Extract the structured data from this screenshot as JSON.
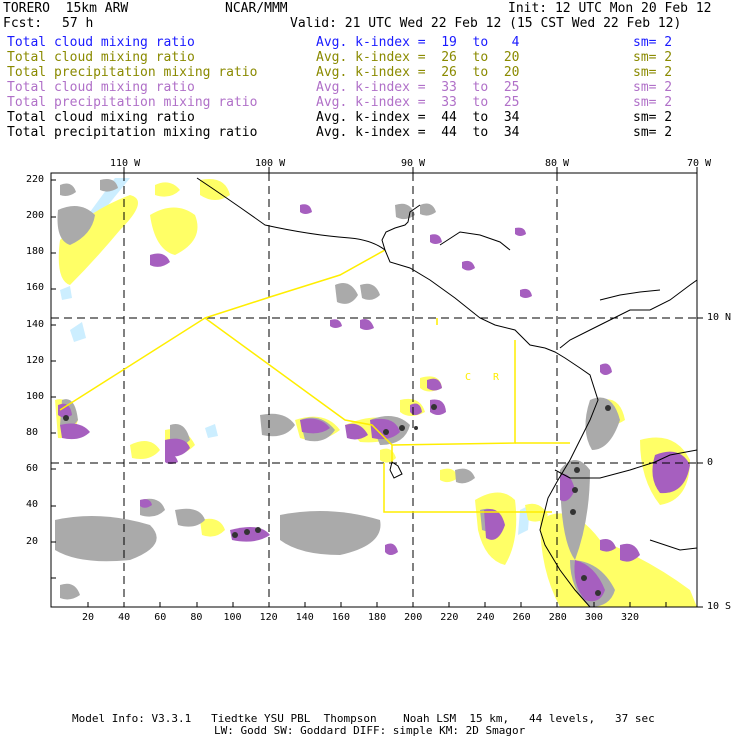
{
  "header": {
    "model": "TORERO  15km ARW",
    "org": "NCAR/MMM",
    "init": "Init: 12 UTC Mon 20 Feb 12",
    "fcst_label": "Fcst:",
    "fcst_value": "57 h",
    "valid": "Valid: 21 UTC Wed 22 Feb 12 (15 CST Wed 22 Feb 12)"
  },
  "legend": [
    {
      "field": "Total cloud mixing ratio",
      "kindex": "Avg. k-index =  19  to   4",
      "sm": "sm= 2",
      "color": "#1a1aff"
    },
    {
      "field": "Total cloud mixing ratio",
      "kindex": "Avg. k-index =  26  to  20",
      "sm": "sm= 2",
      "color": "#8a8a00"
    },
    {
      "field": "Total precipitation mixing ratio",
      "kindex": "Avg. k-index =  26  to  20",
      "sm": "sm= 2",
      "color": "#8a8a00"
    },
    {
      "field": "Total cloud mixing ratio",
      "kindex": "Avg. k-index =  33  to  25",
      "sm": "sm= 2",
      "color": "#b070c8"
    },
    {
      "field": "Total precipitation mixing ratio",
      "kindex": "Avg. k-index =  33  to  25",
      "sm": "sm= 2",
      "color": "#b070c8"
    },
    {
      "field": "Total cloud mixing ratio",
      "kindex": "Avg. k-index =  44  to  34",
      "sm": "sm= 2",
      "color": "#000000"
    },
    {
      "field": "Total precipitation mixing ratio",
      "kindex": "Avg. k-index =  44  to  34",
      "sm": "sm= 2",
      "color": "#000000"
    }
  ],
  "map": {
    "lon_labels": [
      "110 W",
      "100 W",
      "90 W",
      "80 W",
      "70 W"
    ],
    "lat_labels": [
      "10 N",
      "0",
      "10 S"
    ],
    "y_ticks": [
      "220",
      "200",
      "180",
      "160",
      "140",
      "120",
      "100",
      "80",
      "60",
      "40",
      "20"
    ],
    "x_ticks": [
      "20",
      "40",
      "60",
      "80",
      "100",
      "120",
      "140",
      "160",
      "180",
      "200",
      "220",
      "240",
      "260",
      "280",
      "300",
      "320"
    ],
    "region_letters": [
      "C",
      "R"
    ],
    "colors": {
      "light_cyan": "#cceeff",
      "yellow": "#ffff66",
      "purple": "#a65fbf",
      "gray": "#aaaaaa",
      "dark": "#333333",
      "boundary": "#ffee00"
    }
  },
  "footer": {
    "line1": "Model Info: V3.3.1   Tiedtke YSU PBL  Thompson    Noah LSM  15 km,   44 levels,   37 sec",
    "line2": "LW: Godd SW: Goddard DIFF: simple KM: 2D Smagor"
  }
}
